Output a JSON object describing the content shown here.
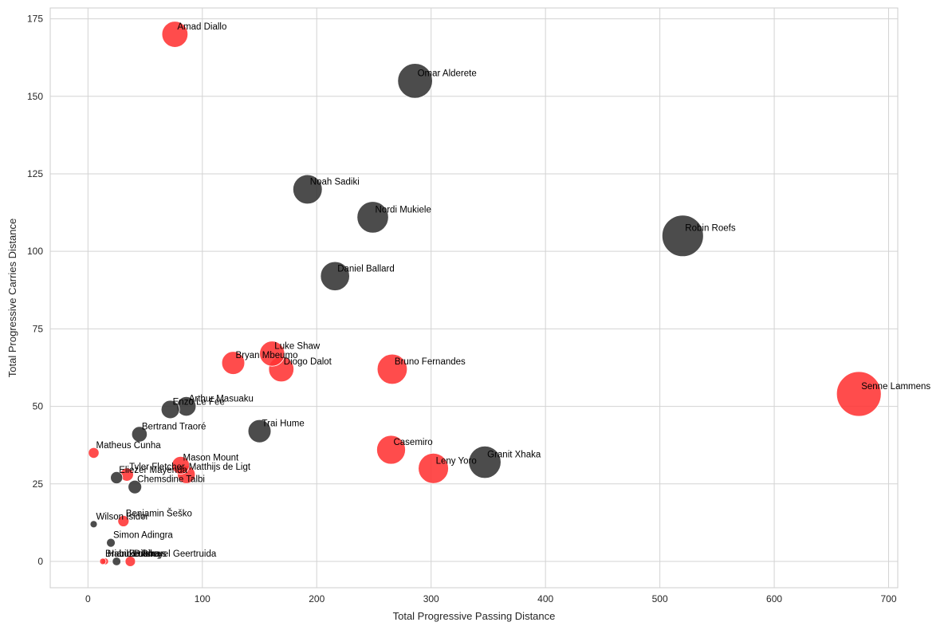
{
  "chart_data": {
    "type": "scatter",
    "title": "",
    "xlabel": "Total Progressive Passing Distance",
    "ylabel": "Total Progressive Carries Distance",
    "xlim": [
      -33,
      708
    ],
    "ylim": [
      -8.5,
      178.5
    ],
    "xticks": [
      0,
      100,
      200,
      300,
      400,
      500,
      600,
      700
    ],
    "yticks": [
      0,
      25,
      50,
      75,
      100,
      125,
      150,
      175
    ],
    "grid": true,
    "colors": {
      "red": "#ff3333",
      "dark": "#333333",
      "grid": "#d3d3d3",
      "axis": "#cccccc"
    },
    "size_note": "bubble size grows with x + y",
    "series": [
      {
        "name": "red",
        "color": "#ff3333"
      },
      {
        "name": "dark",
        "color": "#333333"
      }
    ],
    "points": [
      {
        "label": "Amad Diallo",
        "x": 76,
        "y": 170,
        "group": "red"
      },
      {
        "label": "Omar Alderete",
        "x": 286,
        "y": 155,
        "group": "dark"
      },
      {
        "label": "Noah Sadiki",
        "x": 192,
        "y": 120,
        "group": "dark"
      },
      {
        "label": "Nordi Mukiele",
        "x": 249,
        "y": 111,
        "group": "dark"
      },
      {
        "label": "Robin Roefs",
        "x": 520,
        "y": 105,
        "group": "dark"
      },
      {
        "label": "Daniel Ballard",
        "x": 216,
        "y": 92,
        "group": "dark"
      },
      {
        "label": "Luke Shaw",
        "x": 161,
        "y": 67,
        "group": "red"
      },
      {
        "label": "Bryan Mbeumo",
        "x": 127,
        "y": 64,
        "group": "red"
      },
      {
        "label": "Diogo Dalot",
        "x": 169,
        "y": 62,
        "group": "red"
      },
      {
        "label": "Bruno Fernandes",
        "x": 266,
        "y": 62,
        "group": "red"
      },
      {
        "label": "Senne Lammens",
        "x": 674,
        "y": 54,
        "group": "red"
      },
      {
        "label": "Arthur Masuaku",
        "x": 86,
        "y": 50,
        "group": "dark"
      },
      {
        "label": "Enzo Le Fée",
        "x": 72,
        "y": 49,
        "group": "dark"
      },
      {
        "label": "Trai Hume",
        "x": 150,
        "y": 42,
        "group": "dark"
      },
      {
        "label": "Bertrand Traoré",
        "x": 45,
        "y": 41,
        "group": "dark"
      },
      {
        "label": "Matheus Cunha",
        "x": 5,
        "y": 35,
        "group": "red"
      },
      {
        "label": "Casemiro",
        "x": 265,
        "y": 36,
        "group": "red"
      },
      {
        "label": "Granit Xhaka",
        "x": 347,
        "y": 32,
        "group": "dark"
      },
      {
        "label": "Leny Yoro",
        "x": 302,
        "y": 30,
        "group": "red"
      },
      {
        "label": "Mason Mount",
        "x": 81,
        "y": 31,
        "group": "red"
      },
      {
        "label": "Matthijs de Ligt",
        "x": 86,
        "y": 28,
        "group": "red"
      },
      {
        "label": "Tyler Fletcher",
        "x": 34,
        "y": 28,
        "group": "red"
      },
      {
        "label": "Eliezer Mayenda",
        "x": 25,
        "y": 27,
        "group": "dark"
      },
      {
        "label": "Chemsdine Talbi",
        "x": 41,
        "y": 24,
        "group": "dark"
      },
      {
        "label": "Benjamin Šeško",
        "x": 31,
        "y": 13,
        "group": "red"
      },
      {
        "label": "Wilson Isidor",
        "x": 5,
        "y": 12,
        "group": "dark"
      },
      {
        "label": "Simon Adingra",
        "x": 20,
        "y": 6,
        "group": "dark"
      },
      {
        "label": "Brian Brobbey",
        "x": 13,
        "y": 0,
        "group": "red"
      },
      {
        "label": "Habib Diarra",
        "x": 15,
        "y": 0,
        "group": "red"
      },
      {
        "label": "Luke Rileys",
        "x": 25,
        "y": 0,
        "group": "dark"
      },
      {
        "label": "Lutsharel Geertruida",
        "x": 37,
        "y": 0,
        "group": "red"
      }
    ]
  }
}
